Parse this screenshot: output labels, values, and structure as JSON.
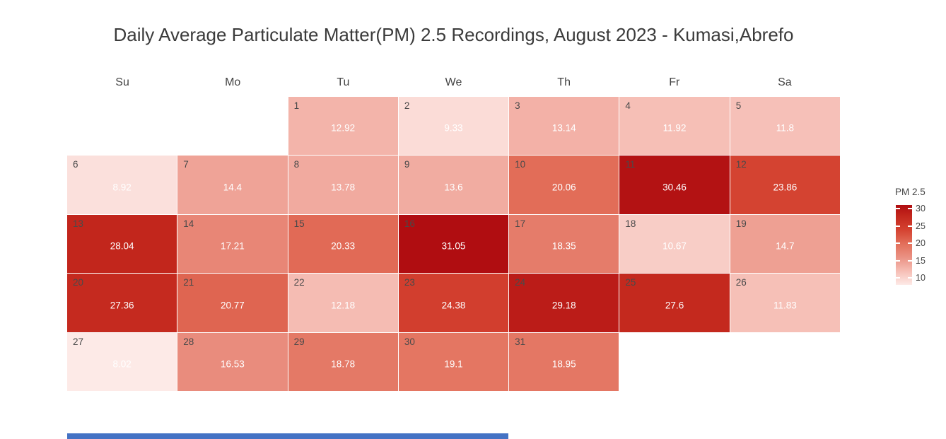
{
  "title": "Daily Average Particulate Matter(PM) 2.5 Recordings, August 2023 - Kumasi,Abrefo",
  "colors": {
    "background": "#ffffff",
    "title_text": "#3b3b3b",
    "label_text": "#444444",
    "day_number_text": "#4a4a4a",
    "value_text": "#ffffff",
    "scrollbar_blue": "#4472c4"
  },
  "colorbar": {
    "title": "PM 2.5",
    "ticks": [
      30,
      25,
      20,
      15,
      10
    ]
  },
  "chart_data": {
    "type": "heatmap",
    "subtype": "calendar",
    "title": "Daily Average Particulate Matter(PM) 2.5 Recordings, August 2023 - Kumasi,Abrefo",
    "legend_title": "PM 2.5",
    "legend_ticks": [
      30,
      25,
      20,
      15,
      10
    ],
    "legend_position": "right",
    "columns": [
      "Su",
      "Mo",
      "Tu",
      "We",
      "Th",
      "Fr",
      "Sa"
    ],
    "weeks": [
      [
        null,
        null,
        {
          "day": 1,
          "value": 12.92
        },
        {
          "day": 2,
          "value": 9.33
        },
        {
          "day": 3,
          "value": 13.14
        },
        {
          "day": 4,
          "value": 11.92
        },
        {
          "day": 5,
          "value": 11.8
        }
      ],
      [
        {
          "day": 6,
          "value": 8.92
        },
        {
          "day": 7,
          "value": 14.4
        },
        {
          "day": 8,
          "value": 13.78
        },
        {
          "day": 9,
          "value": 13.6
        },
        {
          "day": 10,
          "value": 20.06
        },
        {
          "day": 11,
          "value": 30.46
        },
        {
          "day": 12,
          "value": 23.86
        }
      ],
      [
        {
          "day": 13,
          "value": 28.04
        },
        {
          "day": 14,
          "value": 17.21
        },
        {
          "day": 15,
          "value": 20.33
        },
        {
          "day": 16,
          "value": 31.05
        },
        {
          "day": 17,
          "value": 18.35
        },
        {
          "day": 18,
          "value": 10.67
        },
        {
          "day": 19,
          "value": 14.7
        }
      ],
      [
        {
          "day": 20,
          "value": 27.36
        },
        {
          "day": 21,
          "value": 20.77
        },
        {
          "day": 22,
          "value": 12.18
        },
        {
          "day": 23,
          "value": 24.38
        },
        {
          "day": 24,
          "value": 29.18
        },
        {
          "day": 25,
          "value": 27.6
        },
        {
          "day": 26,
          "value": 11.83
        }
      ],
      [
        {
          "day": 27,
          "value": 8.02
        },
        {
          "day": 28,
          "value": 16.53
        },
        {
          "day": 29,
          "value": 18.78
        },
        {
          "day": 30,
          "value": 19.1
        },
        {
          "day": 31,
          "value": 18.95
        },
        null,
        null
      ]
    ],
    "value_range": [
      8.02,
      31.05
    ],
    "colorscale": {
      "domain": [
        8.02,
        31.05
      ],
      "stops": [
        [
          8.02,
          "#fdeae7"
        ],
        [
          12.0,
          "#f6beb5"
        ],
        [
          16.0,
          "#ea9183"
        ],
        [
          20.0,
          "#e26e59"
        ],
        [
          24.0,
          "#d44130"
        ],
        [
          28.0,
          "#c2261c"
        ],
        [
          31.05,
          "#b00d11"
        ]
      ]
    }
  }
}
